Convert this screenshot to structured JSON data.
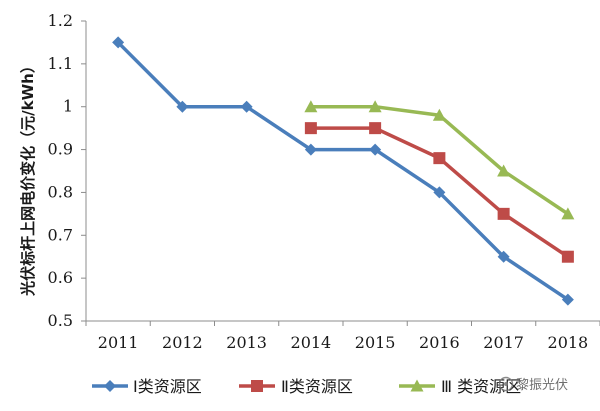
{
  "chart_data": {
    "type": "line",
    "title": "",
    "xlabel": "",
    "ylabel": "光伏标杆上网电价变化（元/kWh）",
    "categories": [
      "2011",
      "2012",
      "2013",
      "2014",
      "2015",
      "2016",
      "2017",
      "2018"
    ],
    "ylim": [
      0.5,
      1.2
    ],
    "yticks": [
      "0.5",
      "0.6",
      "0.7",
      "0.8",
      "0.9",
      "1",
      "1.1",
      "1.2"
    ],
    "grid": false,
    "legend_position": "bottom",
    "series": [
      {
        "name": "Ⅰ类资源区",
        "values": [
          1.15,
          1.0,
          1.0,
          0.9,
          0.9,
          0.8,
          0.65,
          0.55
        ],
        "color": "#4a7ebb",
        "marker": "diamond"
      },
      {
        "name": "Ⅱ类资源区",
        "values": [
          null,
          null,
          null,
          0.95,
          0.95,
          0.88,
          0.75,
          0.65
        ],
        "color": "#be4b48",
        "marker": "square"
      },
      {
        "name": "Ⅲ 类资源区",
        "values": [
          null,
          null,
          null,
          1.0,
          1.0,
          0.98,
          0.85,
          0.75
        ],
        "color": "#98b954",
        "marker": "triangle"
      }
    ]
  },
  "watermark": {
    "text": "黎振光伏"
  }
}
